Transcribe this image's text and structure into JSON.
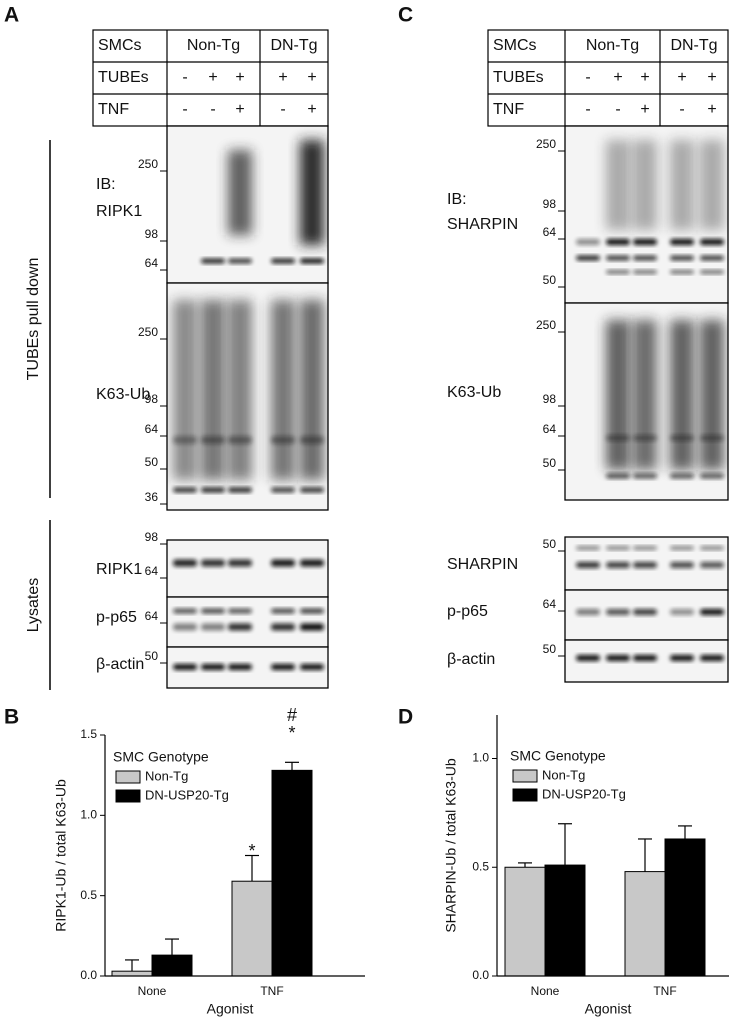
{
  "panel_labels": [
    "A",
    "B",
    "C",
    "D"
  ],
  "blots": [
    {
      "rows": [
        {
          "label": "SMCs",
          "cells": [
            "Non-Tg",
            "DN-Tg"
          ]
        },
        {
          "label": "TUBEs",
          "cells": [
            "-",
            "+",
            "+",
            "+",
            "+"
          ]
        },
        {
          "label": "TNF",
          "cells": [
            "-",
            "-",
            "+",
            "-",
            "+"
          ]
        }
      ],
      "section_labels": [
        "TUBEs pull down",
        "Lysates"
      ],
      "strips": [
        {
          "label": [
            "IB:",
            "RIPK1"
          ],
          "markers": [
            250,
            98,
            64
          ]
        },
        {
          "label": [
            "K63-Ub"
          ],
          "markers": [
            250,
            98,
            64,
            50,
            36
          ]
        },
        {
          "label": [
            "RIPK1"
          ],
          "markers": [
            98,
            64
          ]
        },
        {
          "label": [
            "p-p65"
          ],
          "markers": [
            64
          ]
        },
        {
          "label": [
            "β-actin"
          ],
          "markers": [
            50
          ]
        }
      ]
    },
    {
      "rows": [
        {
          "label": "SMCs",
          "cells": [
            "Non-Tg",
            "DN-Tg"
          ]
        },
        {
          "label": "TUBEs",
          "cells": [
            "-",
            "+",
            "+",
            "+",
            "+"
          ]
        },
        {
          "label": "TNF",
          "cells": [
            "-",
            "-",
            "+",
            "-",
            "+"
          ]
        }
      ],
      "strips": [
        {
          "label": [
            "IB:",
            "SHARPIN"
          ],
          "markers": [
            250,
            98,
            64,
            50
          ]
        },
        {
          "label": [
            "K63-Ub"
          ],
          "markers": [
            250,
            98,
            64,
            50
          ]
        },
        {
          "label": [
            "SHARPIN"
          ],
          "markers": [
            50
          ]
        },
        {
          "label": [
            "p-p65"
          ],
          "markers": [
            64
          ]
        },
        {
          "label": [
            "β-actin"
          ],
          "markers": [
            50
          ]
        }
      ]
    }
  ],
  "chart_data": [
    {
      "type": "bar",
      "y_label": "RIPK1-Ub / total K63-Ub",
      "x_label": "Agonist",
      "categories": [
        "None",
        "TNF"
      ],
      "legend_title": "SMC Genotype",
      "series": [
        {
          "name": "Non-Tg",
          "color": "#c8c8c8",
          "values": [
            0.03,
            0.59
          ],
          "errors": [
            0.07,
            0.16
          ]
        },
        {
          "name": "DN-USP20-Tg",
          "color": "#000000",
          "values": [
            0.13,
            1.28
          ],
          "errors": [
            0.1,
            0.05
          ]
        }
      ],
      "ylim": [
        0,
        1.5
      ],
      "yticks": [
        {
          "value": 0,
          "label": "0.0"
        },
        0.5,
        {
          "value": 1,
          "label": "1.0"
        },
        1.5
      ],
      "annotations": [
        "*",
        "#",
        "*"
      ]
    },
    {
      "type": "bar",
      "y_label": "SHARPIN-Ub / total K63-Ub",
      "x_label": "Agonist",
      "categories": [
        "None",
        "TNF"
      ],
      "legend_title": "SMC Genotype",
      "series": [
        {
          "name": "Non-Tg",
          "color": "#c8c8c8",
          "values": [
            0.5,
            0.48
          ],
          "errors": [
            0.02,
            0.15
          ]
        },
        {
          "name": "DN-USP20-Tg",
          "color": "#000000",
          "values": [
            0.51,
            0.63
          ],
          "errors": [
            0.19,
            0.06
          ]
        }
      ],
      "ylim": [
        0,
        1.2
      ],
      "yticks": [
        {
          "value": 0,
          "label": "0.0"
        },
        0.5,
        {
          "value": 1,
          "label": "1.0"
        }
      ]
    }
  ]
}
